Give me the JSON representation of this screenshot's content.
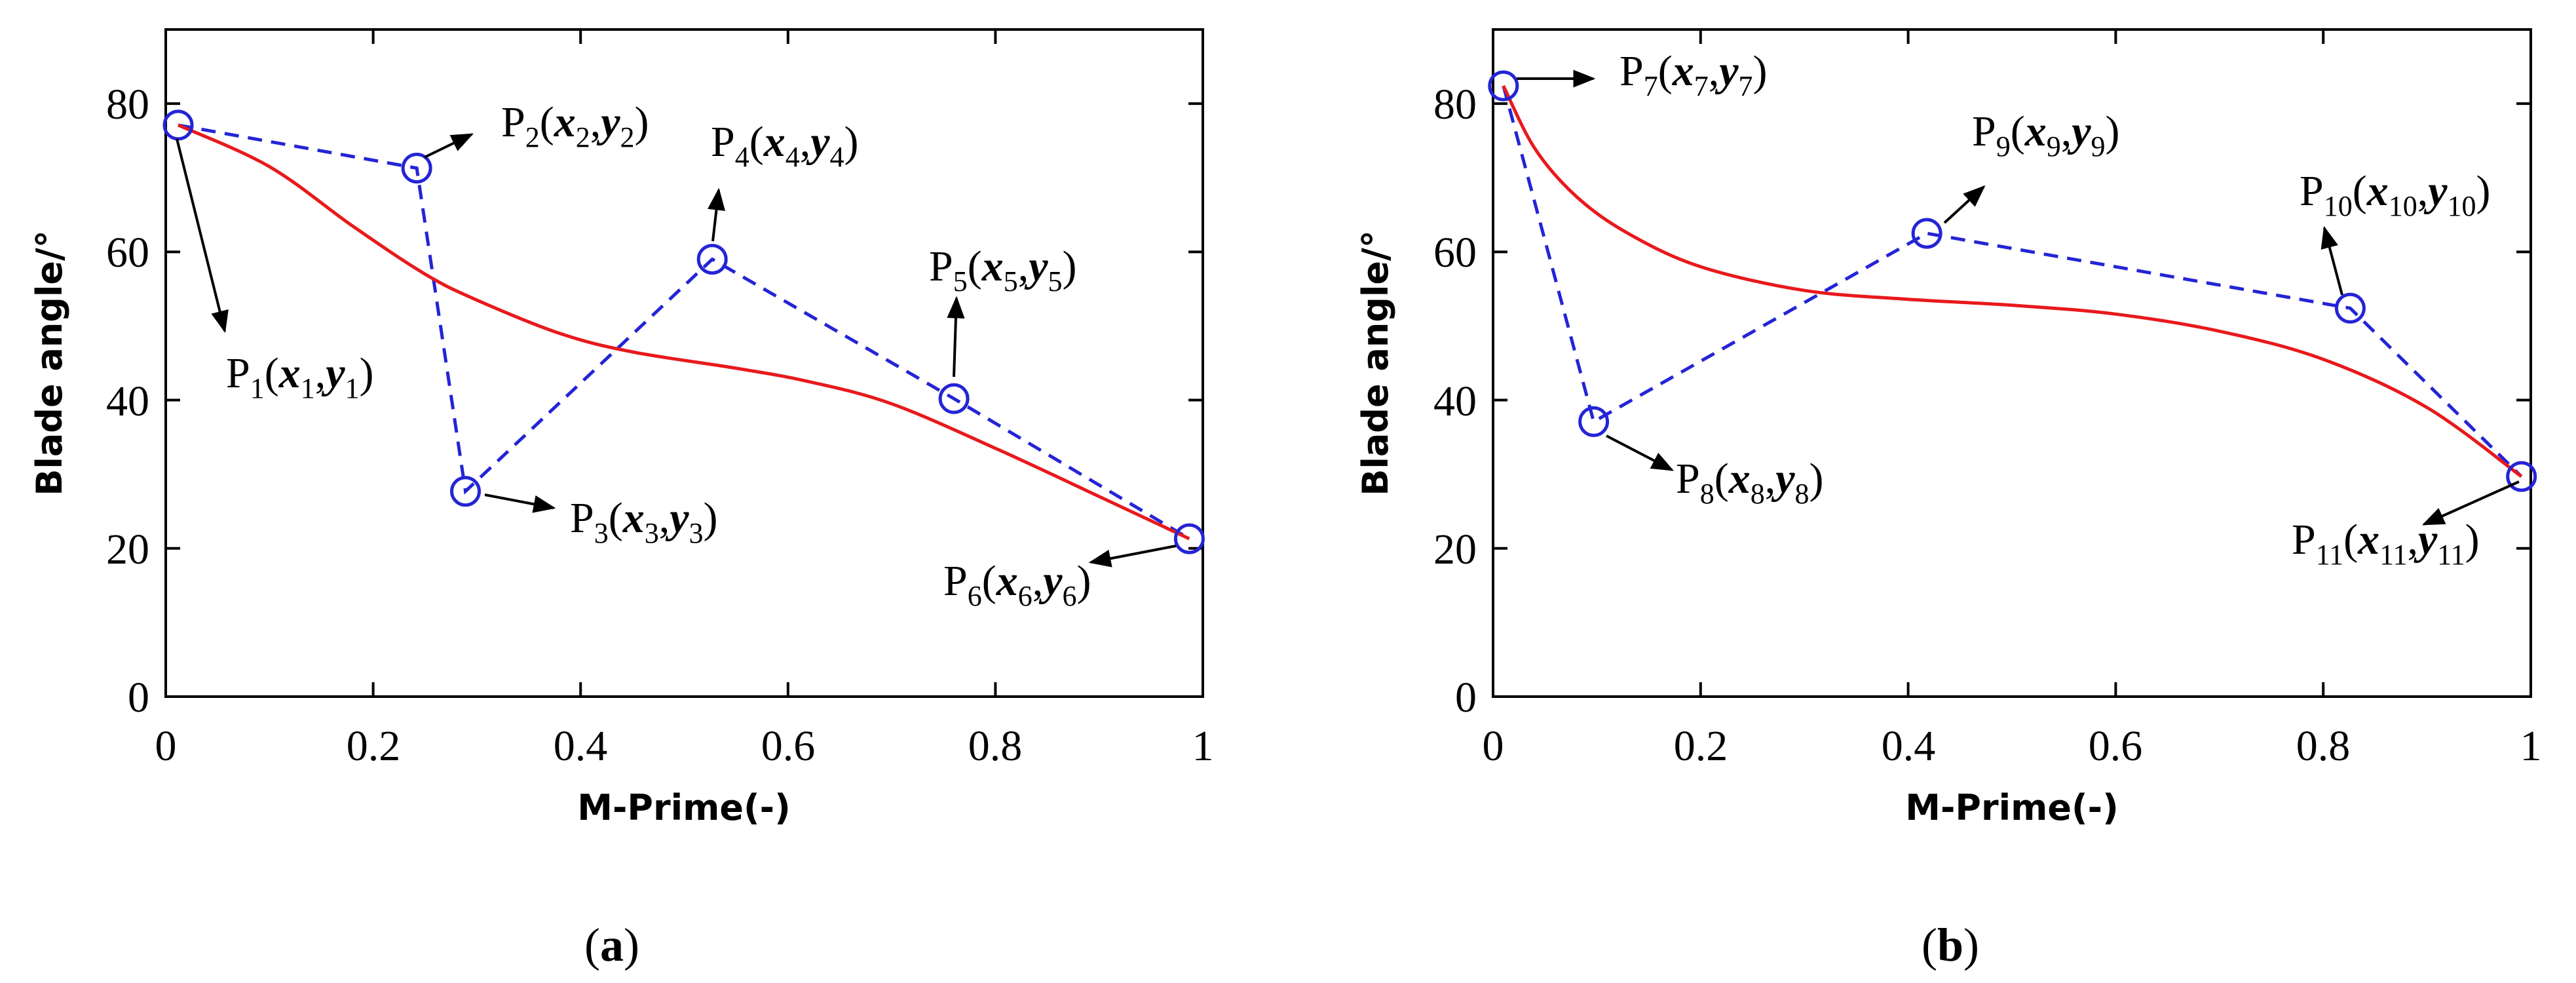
{
  "chart_data": [
    {
      "type": "line",
      "panel_label": "a",
      "xlabel": "M-Prime(-)",
      "ylabel": "Blade angle/°",
      "xlim": [
        0,
        1
      ],
      "ylim": [
        0,
        90
      ],
      "xticks": [
        0,
        0.2,
        0.4,
        0.6,
        0.8,
        1
      ],
      "xtick_labels": [
        "0",
        "0.2",
        "0.4",
        "0.6",
        "0.8",
        "1"
      ],
      "yticks": [
        0,
        20,
        40,
        60,
        80
      ],
      "ytick_labels": [
        "0",
        "20",
        "40",
        "60",
        "80"
      ],
      "grid": false,
      "colors": {
        "curve": "#e8191c",
        "control": "#2424d6",
        "arrow": "#000000"
      },
      "control_points": [
        {
          "name": "P",
          "sub": "1",
          "x": 0.012,
          "y": 77.1,
          "var_sub": "1"
        },
        {
          "name": "P",
          "sub": "2",
          "x": 0.242,
          "y": 71.3,
          "var_sub": "2"
        },
        {
          "name": "P",
          "sub": "3",
          "x": 0.289,
          "y": 27.7,
          "var_sub": "3"
        },
        {
          "name": "P",
          "sub": "4",
          "x": 0.527,
          "y": 59.0,
          "var_sub": "4"
        },
        {
          "name": "P",
          "sub": "5",
          "x": 0.76,
          "y": 40.2,
          "var_sub": "5"
        },
        {
          "name": "P",
          "sub": "6",
          "x": 0.987,
          "y": 21.3,
          "var_sub": "6"
        }
      ],
      "series": [
        {
          "name": "blade-angle-curve",
          "style": "solid",
          "x": [
            0.012,
            0.1,
            0.18,
            0.25,
            0.3,
            0.38,
            0.45,
            0.55,
            0.62,
            0.7,
            0.8,
            0.9,
            0.987
          ],
          "y": [
            77.1,
            71.5,
            63.5,
            57.0,
            53.5,
            49.0,
            46.5,
            44.3,
            42.5,
            39.5,
            33.5,
            27.0,
            21.3
          ]
        },
        {
          "name": "control-polygon",
          "style": "dashed",
          "x": [
            0.012,
            0.242,
            0.289,
            0.527,
            0.76,
            0.987
          ],
          "y": [
            77.1,
            71.3,
            27.7,
            59.0,
            40.2,
            21.3
          ]
        }
      ]
    },
    {
      "type": "line",
      "panel_label": "b",
      "xlabel": "M-Prime(-)",
      "ylabel": "Blade angle/°",
      "xlim": [
        0,
        1
      ],
      "ylim": [
        0,
        90
      ],
      "xticks": [
        0,
        0.2,
        0.4,
        0.6,
        0.8,
        1
      ],
      "xtick_labels": [
        "0",
        "0.2",
        "0.4",
        "0.6",
        "0.8",
        "1"
      ],
      "yticks": [
        0,
        20,
        40,
        60,
        80
      ],
      "ytick_labels": [
        "0",
        "20",
        "40",
        "60",
        "80"
      ],
      "grid": false,
      "colors": {
        "curve": "#e8191c",
        "control": "#2424d6",
        "arrow": "#000000"
      },
      "control_points": [
        {
          "name": "P",
          "sub": "7",
          "x": 0.01,
          "y": 82.4,
          "var_sub": "7"
        },
        {
          "name": "P",
          "sub": "8",
          "x": 0.097,
          "y": 37.1,
          "var_sub": "8"
        },
        {
          "name": "P",
          "sub": "9",
          "x": 0.418,
          "y": 62.5,
          "var_sub": "9"
        },
        {
          "name": "P",
          "sub": "10",
          "x": 0.826,
          "y": 52.4,
          "var_sub": "10"
        },
        {
          "name": "P",
          "sub": "11",
          "x": 0.991,
          "y": 29.7,
          "var_sub": "11"
        }
      ],
      "series": [
        {
          "name": "blade-angle-curve",
          "style": "solid",
          "x": [
            0.01,
            0.04,
            0.08,
            0.13,
            0.2,
            0.3,
            0.4,
            0.5,
            0.6,
            0.7,
            0.8,
            0.9,
            0.991
          ],
          "y": [
            82.4,
            74.0,
            67.5,
            62.5,
            58.0,
            54.8,
            53.6,
            52.8,
            51.6,
            49.3,
            45.5,
            39.0,
            29.7
          ]
        },
        {
          "name": "control-polygon",
          "style": "dashed",
          "x": [
            0.01,
            0.097,
            0.418,
            0.826,
            0.991
          ],
          "y": [
            82.4,
            37.1,
            62.5,
            52.4,
            29.7
          ]
        }
      ]
    }
  ]
}
